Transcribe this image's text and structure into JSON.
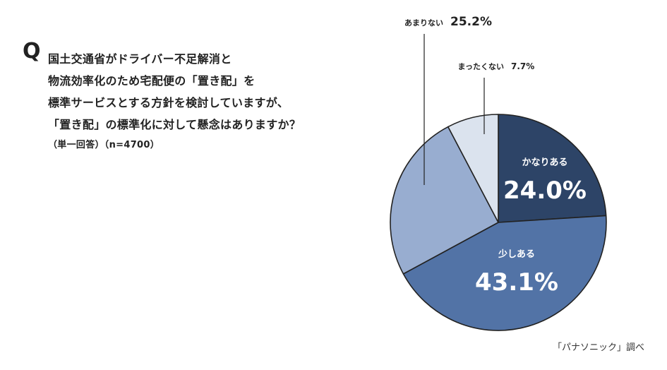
{
  "question": {
    "marker": "Q",
    "lines": [
      "国土交通省がドライバー不足解消と",
      "物流効率化のため宅配便の「置き配」を",
      "標準サービスとする方針を検討していますが、",
      "「置き配」の標準化に対して懸念はありますか？"
    ],
    "note": "（単一回答）（n=4700）"
  },
  "source": "「パナソニック」調べ",
  "chart_data": {
    "type": "pie",
    "start": "12 o'clock, clockwise",
    "slices": [
      {
        "label": "かなりある",
        "value": 24.0,
        "value_label": "24.0%",
        "color": "#2d4467",
        "label_position": "inside"
      },
      {
        "label": "少しある",
        "value": 43.1,
        "value_label": "43.1%",
        "color": "#5273a6",
        "label_position": "inside"
      },
      {
        "label": "あまりない",
        "value": 25.2,
        "value_label": "25.2%",
        "color": "#98add0",
        "label_position": "outside"
      },
      {
        "label": "まったくない",
        "value": 7.7,
        "value_label": "7.7%",
        "color": "#dbe3ee",
        "label_position": "outside"
      }
    ]
  }
}
